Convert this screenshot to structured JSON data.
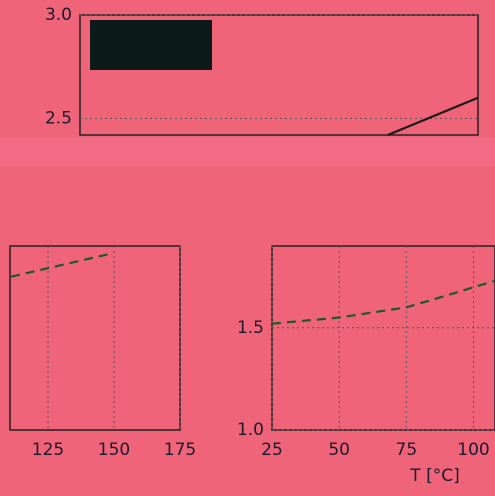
{
  "chart_data": [
    {
      "type": "line",
      "x": [
        83,
        100
      ],
      "xlim": [
        25,
        100
      ],
      "ylim": [
        2.42,
        3.0
      ],
      "yticks": [
        2.5,
        {
          "value": 3.0,
          "label": "3.0"
        }
      ],
      "grid": true,
      "series": [
        {
          "color": "#1a1a1a",
          "linestyle": "solid",
          "values": [
            2.42,
            2.6
          ]
        }
      ]
    },
    {
      "type": "line",
      "x": [
        111,
        148
      ],
      "xlim": [
        110.6,
        175
      ],
      "xticks": [
        125,
        150,
        175
      ],
      "ylim": [
        1.0,
        1.9
      ],
      "grid": true,
      "series": [
        {
          "color": "#1a5a2a",
          "linestyle": "dashed",
          "values": [
            1.75,
            1.86
          ]
        }
      ]
    },
    {
      "type": "line",
      "x": [
        25,
        50,
        75,
        88,
        108
      ],
      "xlim": [
        25,
        108
      ],
      "xticks": [
        25,
        50,
        75,
        100
      ],
      "ylim": [
        1.0,
        1.9
      ],
      "yticks": [
        {
          "value": 1.0,
          "label": "1.0"
        },
        1.5
      ],
      "grid": true,
      "xlabel": "T [°C]",
      "series": [
        {
          "color": "#1a5a2a",
          "linestyle": "dashed",
          "values": [
            1.52,
            1.55,
            1.6,
            1.65,
            1.73
          ]
        }
      ]
    }
  ]
}
